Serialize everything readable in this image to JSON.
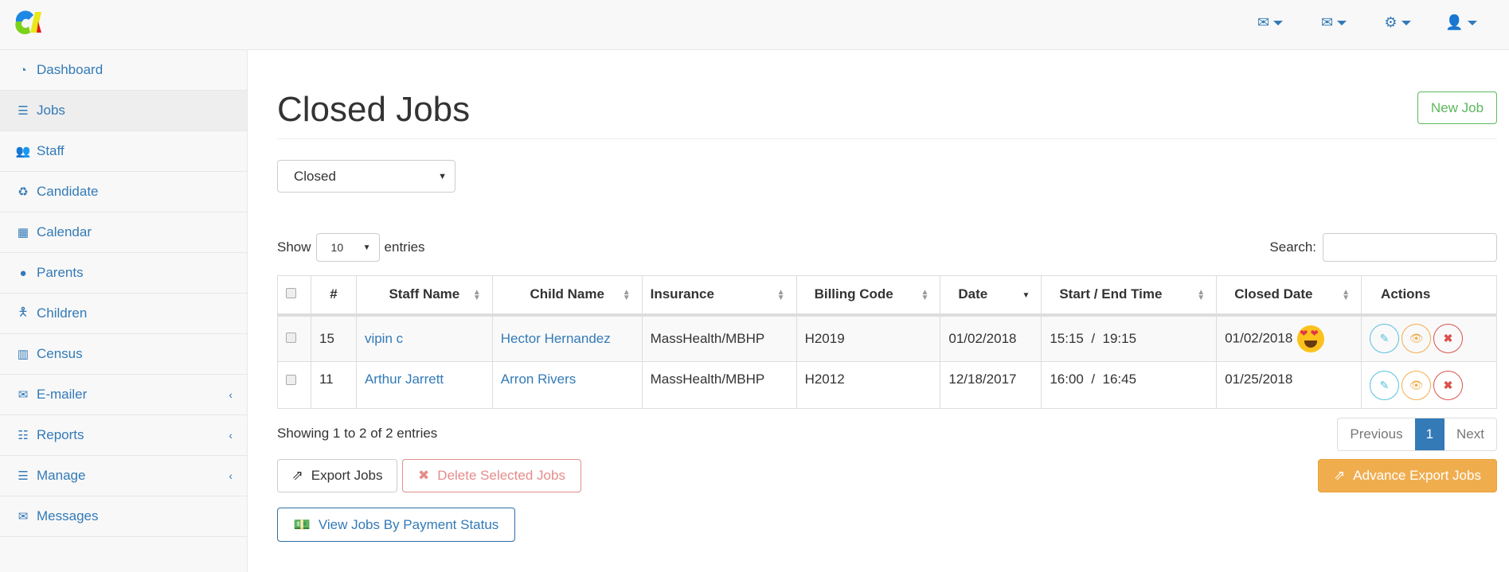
{
  "topbar": {
    "icons": [
      "envelope-icon",
      "envelope-outline-icon",
      "gear-icon",
      "user-icon"
    ]
  },
  "sidebar": {
    "items": [
      {
        "label": "Dashboard",
        "icon": "dashboard-icon"
      },
      {
        "label": "Jobs",
        "icon": "list-icon",
        "active": true
      },
      {
        "label": "Staff",
        "icon": "users-icon"
      },
      {
        "label": "Candidate",
        "icon": "recycle-icon"
      },
      {
        "label": "Calendar",
        "icon": "calendar-icon"
      },
      {
        "label": "Parents",
        "icon": "user-icon"
      },
      {
        "label": "Children",
        "icon": "child-icon"
      },
      {
        "label": "Census",
        "icon": "bar-chart-icon"
      },
      {
        "label": "E-mailer",
        "icon": "envelope-outline-icon",
        "chevron": true
      },
      {
        "label": "Reports",
        "icon": "sliders-icon",
        "chevron": true
      },
      {
        "label": "Manage",
        "icon": "database-icon",
        "chevron": true
      },
      {
        "label": "Messages",
        "icon": "envelope-icon"
      }
    ]
  },
  "page": {
    "title": "Closed Jobs",
    "new_job": "New Job",
    "status_select": "Closed"
  },
  "table_controls": {
    "show": "Show",
    "length": "10",
    "entries": "entries",
    "search_label": "Search:",
    "search_value": ""
  },
  "table": {
    "headers": [
      "#",
      "Staff Name",
      "Child Name",
      "Insurance",
      "Billing Code",
      "Date",
      "Start / End Time",
      "Closed Date",
      "Actions"
    ],
    "rows": [
      {
        "id": "15",
        "staff": "vipin c",
        "child": "Hector Hernandez",
        "insurance": "MassHealth/MBHP",
        "billing": "H2019",
        "date": "01/02/2018",
        "time": "15:15  /  19:15",
        "closed": "01/02/2018",
        "emoji": "heart-eyes-emoji"
      },
      {
        "id": "11",
        "staff": "Arthur Jarrett",
        "child": "Arron Rivers",
        "insurance": "MassHealth/MBHP",
        "billing": "H2012",
        "date": "12/18/2017",
        "time": "16:00  /  16:45",
        "closed": "01/25/2018"
      }
    ]
  },
  "footer": {
    "info": "Showing 1 to 2 of 2 entries",
    "previous": "Previous",
    "page": "1",
    "next": "Next"
  },
  "buttons": {
    "export": "Export Jobs",
    "delete": "Delete Selected Jobs",
    "advance": "Advance Export Jobs",
    "payment": "View Jobs By Payment Status"
  },
  "colors": {
    "primary": "#337ab7",
    "success": "#5cb85c",
    "warning": "#f0ad4e",
    "danger": "#d9534f",
    "info": "#5bc0de"
  }
}
